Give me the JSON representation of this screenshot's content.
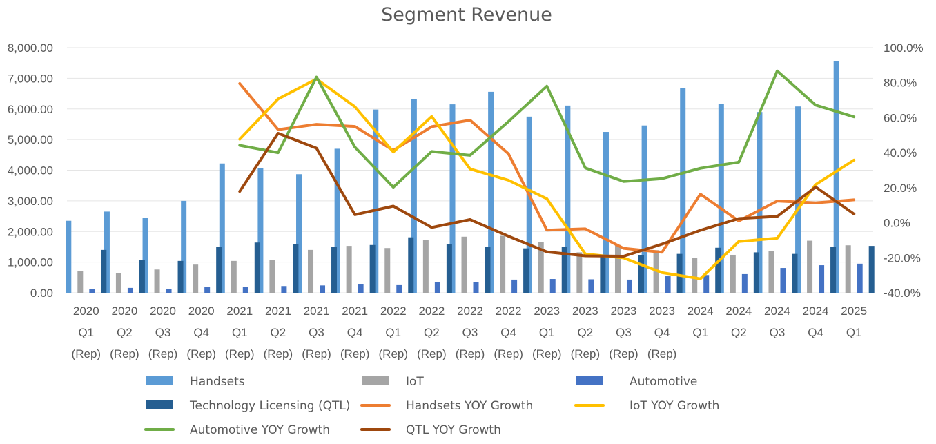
{
  "chart_data": {
    "type": "bar",
    "title": "Segment Revenue",
    "categories": [
      [
        "2020",
        "Q1",
        "(Rep)"
      ],
      [
        "2020",
        "Q2",
        "(Rep)"
      ],
      [
        "2020",
        "Q3",
        "(Rep)"
      ],
      [
        "2020",
        "Q4",
        "(Rep)"
      ],
      [
        "2021",
        "Q1",
        "(Rep)"
      ],
      [
        "2021",
        "Q2",
        "(Rep)"
      ],
      [
        "2021",
        "Q3",
        "(Rep)"
      ],
      [
        "2021",
        "Q4",
        "(Rep)"
      ],
      [
        "2022",
        "Q1",
        "(Rep)"
      ],
      [
        "2022",
        "Q2",
        "(Rep)"
      ],
      [
        "2022",
        "Q3",
        "(Rep)"
      ],
      [
        "2022",
        "Q4",
        "(Rep)"
      ],
      [
        "2023",
        "Q1",
        "(Rep)"
      ],
      [
        "2023",
        "Q2",
        "(Rep)"
      ],
      [
        "2023",
        "Q3",
        "(Rep)"
      ],
      [
        "2023",
        "Q4",
        "(Rep)"
      ],
      [
        "2024",
        "Q1"
      ],
      [
        "2024",
        "Q2"
      ],
      [
        "2024",
        "Q3"
      ],
      [
        "2024",
        "Q4"
      ],
      [
        "2025",
        "Q1"
      ]
    ],
    "y_left": {
      "ylim": [
        0,
        8000
      ],
      "ticks": [
        0,
        1000,
        2000,
        3000,
        4000,
        5000,
        6000,
        7000,
        8000
      ],
      "tick_labels": [
        "0.00",
        "1,000.00",
        "2,000.00",
        "3,000.00",
        "4,000.00",
        "5,000.00",
        "6,000.00",
        "7,000.00",
        "8,000.00"
      ]
    },
    "y_right": {
      "ylim": [
        -40,
        100
      ],
      "ticks": [
        -40,
        -20,
        0,
        20,
        40,
        60,
        80,
        100
      ],
      "tick_labels": [
        "-40.0%",
        "-20.0%",
        "0.0%",
        "20.0%",
        "40.0%",
        "60.0%",
        "80.0%",
        "100.0%"
      ]
    },
    "bar_series": [
      {
        "name": "Handsets",
        "color": "#5b9bd5",
        "values": [
          2350,
          2650,
          2450,
          3000,
          4220,
          4060,
          3870,
          4700,
          5980,
          6330,
          6150,
          6560,
          5750,
          6110,
          5250,
          5460,
          6690,
          6170,
          5900,
          6080,
          7570
        ]
      },
      {
        "name": "IoT",
        "color": "#a5a5a5",
        "values": [
          700,
          640,
          760,
          920,
          1040,
          1070,
          1400,
          1530,
          1460,
          1720,
          1830,
          1860,
          1660,
          1320,
          1560,
          1390,
          1130,
          1240,
          1360,
          1700,
          1550
        ]
      },
      {
        "name": "Automotive",
        "color": "#4472c4",
        "values": [
          130,
          160,
          130,
          180,
          200,
          220,
          240,
          270,
          250,
          340,
          350,
          430,
          450,
          440,
          430,
          540,
          580,
          610,
          810,
          900,
          950
        ]
      },
      {
        "name": "Technology Licensing (QTL)",
        "color": "#255e91",
        "values": [
          1400,
          1060,
          1040,
          1490,
          1640,
          1600,
          1490,
          1560,
          1810,
          1580,
          1510,
          1450,
          1510,
          1230,
          1220,
          1270,
          1470,
          1320,
          1270,
          1510,
          1530
        ]
      }
    ],
    "line_series": [
      {
        "name": "Handsets YOY Growth",
        "color": "#ed7d31",
        "start_index": 4,
        "values": [
          79.5,
          53.2,
          56.2,
          55.0,
          41.3,
          54.9,
          58.6,
          39.4,
          -4.2,
          -3.5,
          -14.6,
          -16.8,
          16.3,
          1.0,
          12.4,
          11.4,
          13.1
        ]
      },
      {
        "name": "IoT YOY Growth",
        "color": "#ffc000",
        "start_index": 4,
        "values": [
          47.7,
          70.7,
          82.1,
          66.3,
          40.4,
          60.7,
          30.7,
          24.3,
          13.7,
          -17.8,
          -20.1,
          -28.5,
          -32.0,
          -10.7,
          -8.8,
          21.8,
          35.8
        ]
      },
      {
        "name": "Automotive  YOY Growth",
        "color": "#70ad47",
        "start_index": 4,
        "values": [
          44.2,
          40.0,
          83.2,
          43.2,
          20.3,
          40.7,
          38.5,
          57.8,
          78.0,
          31.3,
          23.6,
          25.2,
          31.1,
          34.6,
          86.7,
          67.2,
          60.5
        ]
      },
      {
        "name": "QTL  YOY Growth",
        "color": "#9e480e",
        "start_index": 4,
        "values": [
          17.9,
          51.1,
          42.6,
          4.6,
          9.5,
          -2.7,
          1.8,
          -7.7,
          -16.6,
          -18.9,
          -19.1,
          -12.2,
          -4.3,
          2.4,
          3.6,
          20.4,
          5.0
        ]
      }
    ],
    "legend": {
      "placement": "bottom",
      "items": [
        "Handsets",
        "IoT",
        "Automotive",
        "Technology Licensing (QTL)",
        "Handsets YOY Growth",
        "IoT YOY Growth",
        "Automotive  YOY Growth",
        "QTL  YOY Growth"
      ]
    },
    "grid": true
  }
}
